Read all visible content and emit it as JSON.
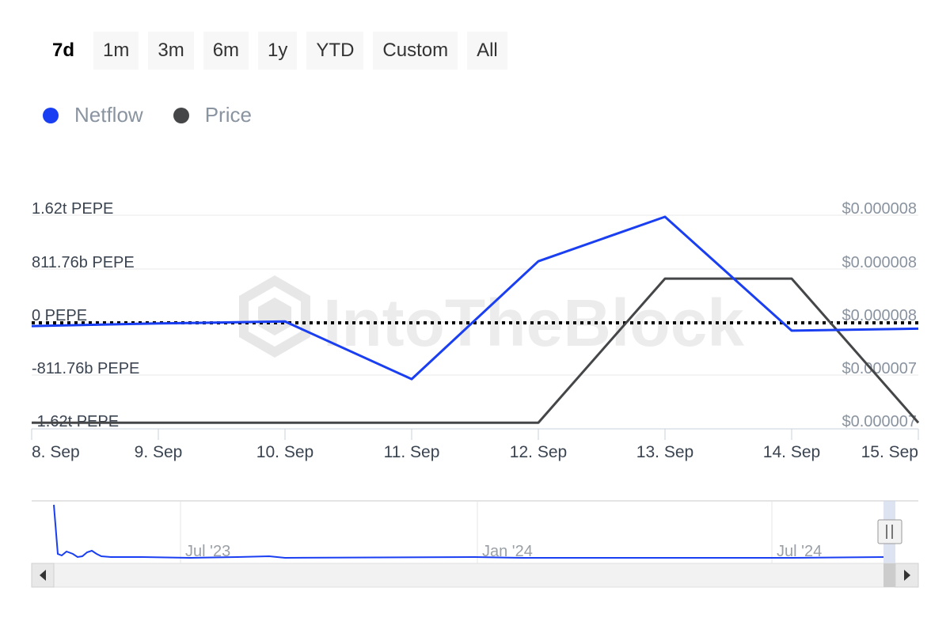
{
  "range_buttons": [
    {
      "label": "7d",
      "active": true
    },
    {
      "label": "1m",
      "active": false
    },
    {
      "label": "3m",
      "active": false
    },
    {
      "label": "6m",
      "active": false
    },
    {
      "label": "1y",
      "active": false
    },
    {
      "label": "YTD",
      "active": false
    },
    {
      "label": "Custom",
      "active": false
    },
    {
      "label": "All",
      "active": false
    }
  ],
  "watermark": "IntoTheBlock",
  "colors": {
    "netflow": "#1a3ff2",
    "price": "#444648",
    "grid": "#e8e8e8",
    "axis": "#c6d0dc"
  },
  "chart_data": {
    "type": "line",
    "legend": [
      "Netflow",
      "Price"
    ],
    "legend_position": "top-left",
    "x": [
      "8. Sep",
      "9. Sep",
      "10. Sep",
      "11. Sep",
      "12. Sep",
      "13. Sep",
      "14. Sep",
      "15. Sep"
    ],
    "y_left_ticks": [
      "1.62t PEPE",
      "811.76b PEPE",
      "0 PEPE",
      "-811.76b PEPE",
      "-1.62t PEPE"
    ],
    "y_right_ticks": [
      "$0.000008",
      "$0.000008",
      "$0.000008",
      "$0.000007",
      "$0.000007"
    ],
    "y_left_range": [
      -1.62,
      1.62
    ],
    "series": [
      {
        "name": "Netflow",
        "axis": "left",
        "unit": "t PEPE",
        "values": [
          -0.05,
          -0.01,
          0.02,
          -0.86,
          0.94,
          1.62,
          -0.12,
          -0.09
        ]
      },
      {
        "name": "Price",
        "axis": "right",
        "unit": "USD",
        "values": [
          7.1e-06,
          7.1e-06,
          7.1e-06,
          7.1e-06,
          7.1e-06,
          7.8e-06,
          7.8e-06,
          7.1e-06
        ]
      }
    ],
    "zero_line": "dotted",
    "grid": true,
    "navigator": {
      "x_labels": [
        "Jul '23",
        "Jan '24",
        "Jul '24"
      ]
    }
  }
}
